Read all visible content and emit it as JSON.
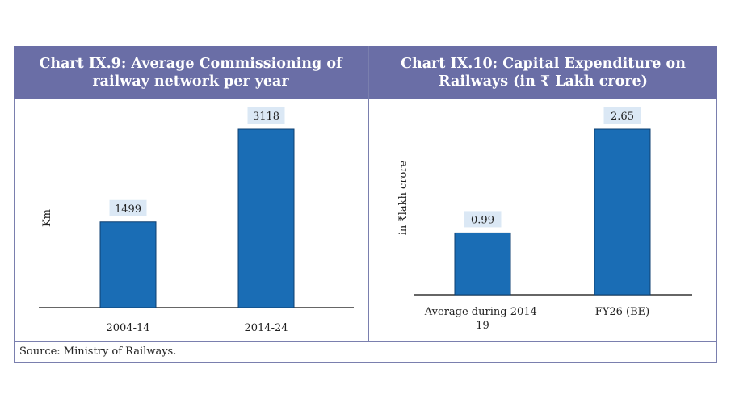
{
  "chart_data": [
    {
      "type": "bar",
      "title": "Chart IX.9: Average Commissioning of railway network per year",
      "ylabel": "Km",
      "xlabel": "",
      "categories": [
        "2004-14",
        "2014-24"
      ],
      "values": [
        1499,
        3118
      ],
      "data_labels": [
        "1499",
        "3118"
      ],
      "ylim": [
        0,
        3118
      ],
      "bar_color": "#1a6db5",
      "grid": false
    },
    {
      "type": "bar",
      "title": "Chart IX.10: Capital Expenditure on Railways (in ₹ Lakh crore)",
      "ylabel": "in ₹lakh crore",
      "xlabel": "",
      "categories": [
        [
          "Average during 2014-",
          "19"
        ],
        [
          "FY26 (BE)"
        ]
      ],
      "values": [
        0.99,
        2.65
      ],
      "data_labels": [
        "0.99",
        "2.65"
      ],
      "ylim": [
        0,
        2.65
      ],
      "bar_color": "#1a6db5",
      "grid": false
    }
  ],
  "source": "Source: Ministry of Railways."
}
